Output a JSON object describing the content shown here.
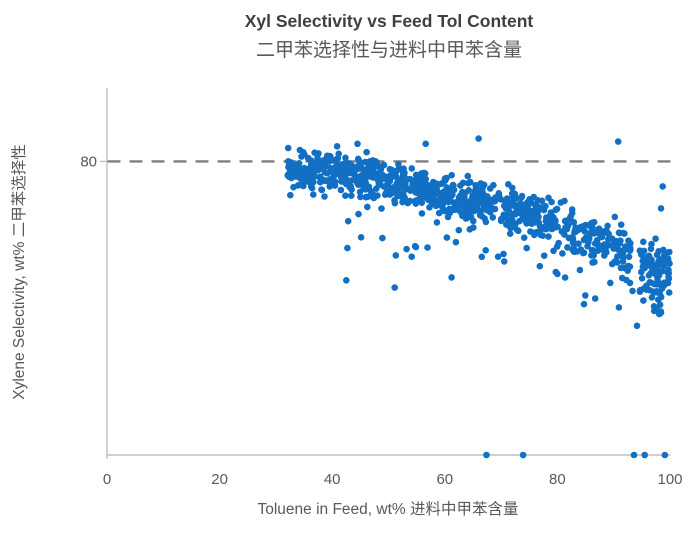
{
  "title": {
    "line1": "Xyl Selectivity vs Feed Tol Content",
    "line2": "二甲苯选择性与进料中甲苯含量"
  },
  "axes": {
    "x": {
      "label": "Toluene in Feed, wt% 进料中甲苯含量",
      "ticks": [
        0,
        20,
        40,
        60,
        80,
        100
      ]
    },
    "y": {
      "label": "Xylene Selectivity, wt% 二甲苯选择性",
      "ticks": [
        80
      ]
    }
  },
  "colors": {
    "point": "#1170C4",
    "reference_line": "#7F7F7F",
    "axis_line": "#BFBFBF",
    "tick_text": "#595959",
    "title_text": "#3F3F3F"
  },
  "chart_data": {
    "type": "scatter",
    "title": "Xyl Selectivity vs Feed Tol Content / 二甲苯选择性与进料中甲苯含量",
    "xlabel": "Toluene in Feed, wt% 进料中甲苯含量",
    "ylabel": "Xylene Selectivity, wt% 二甲苯选择性",
    "xlim": [
      0,
      100
    ],
    "ylim": [
      40,
      90
    ],
    "grid": false,
    "legend": false,
    "reference_line": {
      "y": 80,
      "style": "dashed",
      "color": "#7F7F7F"
    },
    "point_color": "#1170C4",
    "point_radius": 3.3,
    "n_points_estimate": 1000,
    "trend": [
      [
        31,
        79
      ],
      [
        46,
        78
      ],
      [
        64,
        74.5
      ],
      [
        76,
        72.5
      ],
      [
        90,
        68.4
      ],
      [
        100,
        64.3
      ]
    ],
    "band_segments": [
      {
        "x0": 32,
        "x1": 40,
        "n": 110,
        "sy": 1.3
      },
      {
        "x0": 40,
        "x1": 52,
        "n": 180,
        "sy": 1.3
      },
      {
        "x0": 52,
        "x1": 64,
        "n": 190,
        "sy": 1.4
      },
      {
        "x0": 64,
        "x1": 76,
        "n": 160,
        "sy": 1.4
      },
      {
        "x0": 76,
        "x1": 86,
        "n": 95,
        "sy": 1.5
      },
      {
        "x0": 86,
        "x1": 93,
        "n": 85,
        "sy": 1.6
      },
      {
        "x0": 94.5,
        "x1": 100,
        "n": 90,
        "sy": 2.0
      }
    ],
    "low_scatter": {
      "x0": 42,
      "x1": 95,
      "n": 42,
      "dy_min": 2,
      "dy_max": 9.5
    },
    "tail_cluster": {
      "x0": 96.5,
      "x1": 98.5,
      "y0": 59,
      "y1": 62.5,
      "n": 14
    },
    "outlier_points": [
      [
        42.7,
        68.2
      ],
      [
        42.5,
        63.8
      ],
      [
        51.3,
        67.2
      ],
      [
        51.1,
        62.8
      ],
      [
        61.2,
        64.2
      ],
      [
        84,
        65.2
      ],
      [
        44.5,
        82.4
      ],
      [
        56.6,
        82.4
      ],
      [
        66,
        83.1
      ],
      [
        90.8,
        82.7
      ],
      [
        98.7,
        76.6
      ],
      [
        98.4,
        73.6
      ]
    ],
    "bottom_axis_points": [
      [
        67.4,
        40
      ],
      [
        73.9,
        40
      ],
      [
        93.6,
        40
      ],
      [
        95.5,
        40
      ],
      [
        99.1,
        40
      ]
    ],
    "seed": 11
  }
}
